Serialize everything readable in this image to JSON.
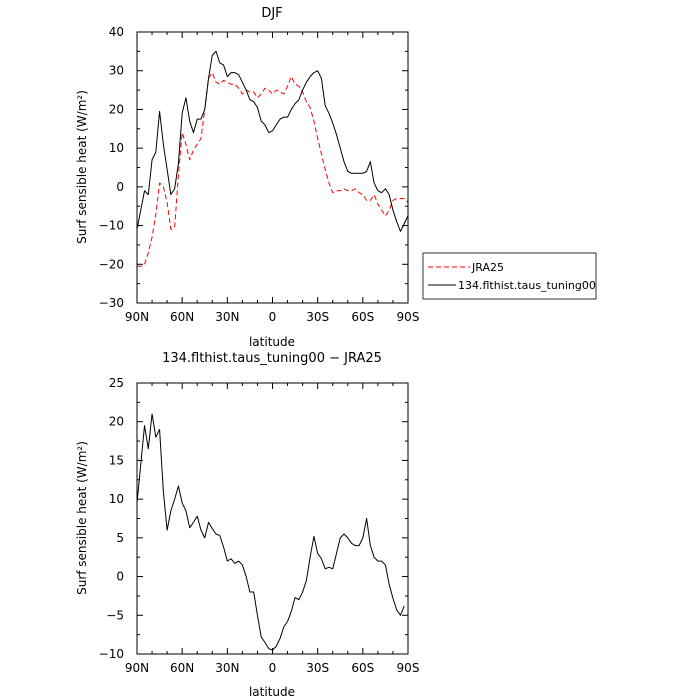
{
  "chart_data": [
    {
      "type": "line",
      "title": "DJF",
      "xlabel": "latitude",
      "ylabel": "Surf sensible heat (W/m²)",
      "xlim": [
        90,
        -90
      ],
      "ylim": [
        -30,
        40
      ],
      "xticks": [
        90,
        60,
        30,
        0,
        -30,
        -60,
        -90
      ],
      "xtick_labels": [
        "90N",
        "60N",
        "30N",
        "0",
        "30S",
        "60S",
        "90S"
      ],
      "yticks": [
        -30,
        -20,
        -10,
        0,
        10,
        20,
        30,
        40
      ],
      "ytick_labels": [
        "−30",
        "−20",
        "−10",
        "0",
        "10",
        "20",
        "30",
        "40"
      ],
      "legend_position": "outside-right",
      "series": [
        {
          "name": "JRA25",
          "color": "#ff0000",
          "dash": "dashed",
          "x": [
            90,
            87.5,
            85,
            82.5,
            80,
            77.5,
            75,
            72.5,
            70,
            67.5,
            65,
            62.5,
            60,
            57.5,
            55,
            52.5,
            50,
            47.5,
            45,
            42.5,
            40,
            37.5,
            35,
            32.5,
            30,
            27.5,
            25,
            22.5,
            20,
            17.5,
            15,
            12.5,
            10,
            7.5,
            5,
            2.5,
            0,
            -2.5,
            -5,
            -7.5,
            -10,
            -12.5,
            -15,
            -17.5,
            -20,
            -22.5,
            -25,
            -27.5,
            -30,
            -32.5,
            -35,
            -37.5,
            -40,
            -42.5,
            -45,
            -47.5,
            -50,
            -52.5,
            -55,
            -57.5,
            -60,
            -62.5,
            -65,
            -67.5,
            -70,
            -72.5,
            -75,
            -77.5,
            -80,
            -82.5,
            -85,
            -87.5,
            -90
          ],
          "y": [
            -20.5,
            -20.5,
            -20,
            -17,
            -13,
            -7,
            1,
            0,
            -4,
            -11,
            -10.5,
            3,
            14,
            11,
            7,
            9.5,
            11,
            12.5,
            20,
            28,
            29.5,
            27,
            26.5,
            27.5,
            27,
            26.5,
            26.5,
            25.5,
            24,
            25,
            24.5,
            24.5,
            23,
            24,
            25.5,
            25,
            24,
            25,
            24.5,
            24,
            26,
            28.5,
            26.5,
            26,
            24.5,
            22,
            20.5,
            17,
            12.5,
            8.5,
            4.5,
            1,
            -1.5,
            -1,
            -1,
            -0.5,
            -1,
            -1,
            -0.5,
            -1.5,
            -2,
            -3.5,
            -3.5,
            -2,
            -4.5,
            -6,
            -7.5,
            -6,
            -3.5,
            -3,
            -3,
            -3,
            -4
          ]
        },
        {
          "name": "134.flthist.taus_tuning00",
          "color": "#000000",
          "dash": "solid",
          "x": [
            90,
            87.5,
            85,
            82.5,
            80,
            77.5,
            75,
            72.5,
            70,
            67.5,
            65,
            62.5,
            60,
            57.5,
            55,
            52.5,
            50,
            47.5,
            45,
            42.5,
            40,
            37.5,
            35,
            32.5,
            30,
            27.5,
            25,
            22.5,
            20,
            17.5,
            15,
            12.5,
            10,
            7.5,
            5,
            2.5,
            0,
            -2.5,
            -5,
            -7.5,
            -10,
            -12.5,
            -15,
            -17.5,
            -20,
            -22.5,
            -25,
            -27.5,
            -30,
            -32.5,
            -35,
            -37.5,
            -40,
            -42.5,
            -45,
            -47.5,
            -50,
            -52.5,
            -55,
            -57.5,
            -60,
            -62.5,
            -65,
            -67.5,
            -70,
            -72.5,
            -75,
            -77.5,
            -80,
            -82.5,
            -85,
            -87.5,
            -90
          ],
          "y": [
            -11,
            -6,
            -1,
            -2,
            7,
            9,
            19.5,
            11,
            4.5,
            -2,
            -0.5,
            6,
            19,
            23,
            17,
            14,
            17.5,
            17.5,
            20,
            28,
            34,
            35,
            32,
            31.5,
            28.5,
            29.5,
            29.5,
            29,
            27,
            25,
            22.5,
            22,
            20.5,
            17,
            16,
            14,
            14.5,
            16,
            17.5,
            18,
            18,
            20,
            21.5,
            22.5,
            25,
            27,
            28.5,
            29.5,
            30,
            28,
            21,
            19,
            16.5,
            13.5,
            10,
            6.5,
            4,
            3.5,
            3.5,
            3.5,
            3.5,
            4,
            6.5,
            1,
            -1,
            -1.5,
            -0.5,
            -2,
            -6,
            -9,
            -11.5,
            -9.5,
            -7.5
          ]
        }
      ]
    },
    {
      "type": "line",
      "title": "134.flthist.taus_tuning00 − JRA25",
      "xlabel": "latitude",
      "ylabel": "Surf sensible heat (W/m²)",
      "xlim": [
        90,
        -90
      ],
      "ylim": [
        -10,
        25
      ],
      "xticks": [
        90,
        60,
        30,
        0,
        -30,
        -60,
        -90
      ],
      "xtick_labels": [
        "90N",
        "60N",
        "30N",
        "0",
        "30S",
        "60S",
        "90S"
      ],
      "yticks": [
        -10,
        -5,
        0,
        5,
        10,
        15,
        20,
        25
      ],
      "ytick_labels": [
        "−10",
        "−5",
        "0",
        "5",
        "10",
        "15",
        "20",
        "25"
      ],
      "series": [
        {
          "color": "#000000",
          "dash": "solid",
          "x": [
            90,
            87.5,
            85,
            82.5,
            80,
            77.5,
            75,
            72.5,
            70,
            67.5,
            65,
            62.5,
            60,
            57.5,
            55,
            52.5,
            50,
            47.5,
            45,
            42.5,
            40,
            37.5,
            35,
            32.5,
            30,
            27.5,
            25,
            22.5,
            20,
            17.5,
            15,
            12.5,
            10,
            7.5,
            5,
            2.5,
            0,
            -2.5,
            -5,
            -7.5,
            -10,
            -12.5,
            -15,
            -17.5,
            -20,
            -22.5,
            -25,
            -27.5,
            -30,
            -32.5,
            -35,
            -37.5,
            -40,
            -42.5,
            -45,
            -47.5,
            -50,
            -52.5,
            -55,
            -57.5,
            -60,
            -62.5,
            -65,
            -67.5,
            -70,
            -72.5,
            -75,
            -77.5,
            -80,
            -82.5,
            -85,
            -87.5,
            -90
          ],
          "y": [
            9.5,
            14.5,
            19.5,
            16.5,
            21,
            18,
            19,
            11,
            6,
            8.5,
            10,
            11.7,
            9.5,
            8.5,
            6.3,
            7,
            7.8,
            6,
            5,
            7,
            6.2,
            5.5,
            5.3,
            3.8,
            2,
            2.3,
            1.7,
            2,
            1.5,
            0,
            -2,
            -2,
            -5,
            -7.8,
            -8.5,
            -9.3,
            -9.5,
            -9,
            -8,
            -6.5,
            -5.8,
            -4.5,
            -2.7,
            -3,
            -2,
            -0.5,
            2.5,
            5.2,
            3,
            2.3,
            1,
            1.2,
            1,
            3,
            5,
            5.5,
            5,
            4.3,
            4,
            4,
            5,
            7.5,
            4,
            2.5,
            2,
            2,
            1.5,
            -1,
            -2.8,
            -4.3,
            -5,
            -3.8,
            null
          ]
        }
      ]
    }
  ]
}
